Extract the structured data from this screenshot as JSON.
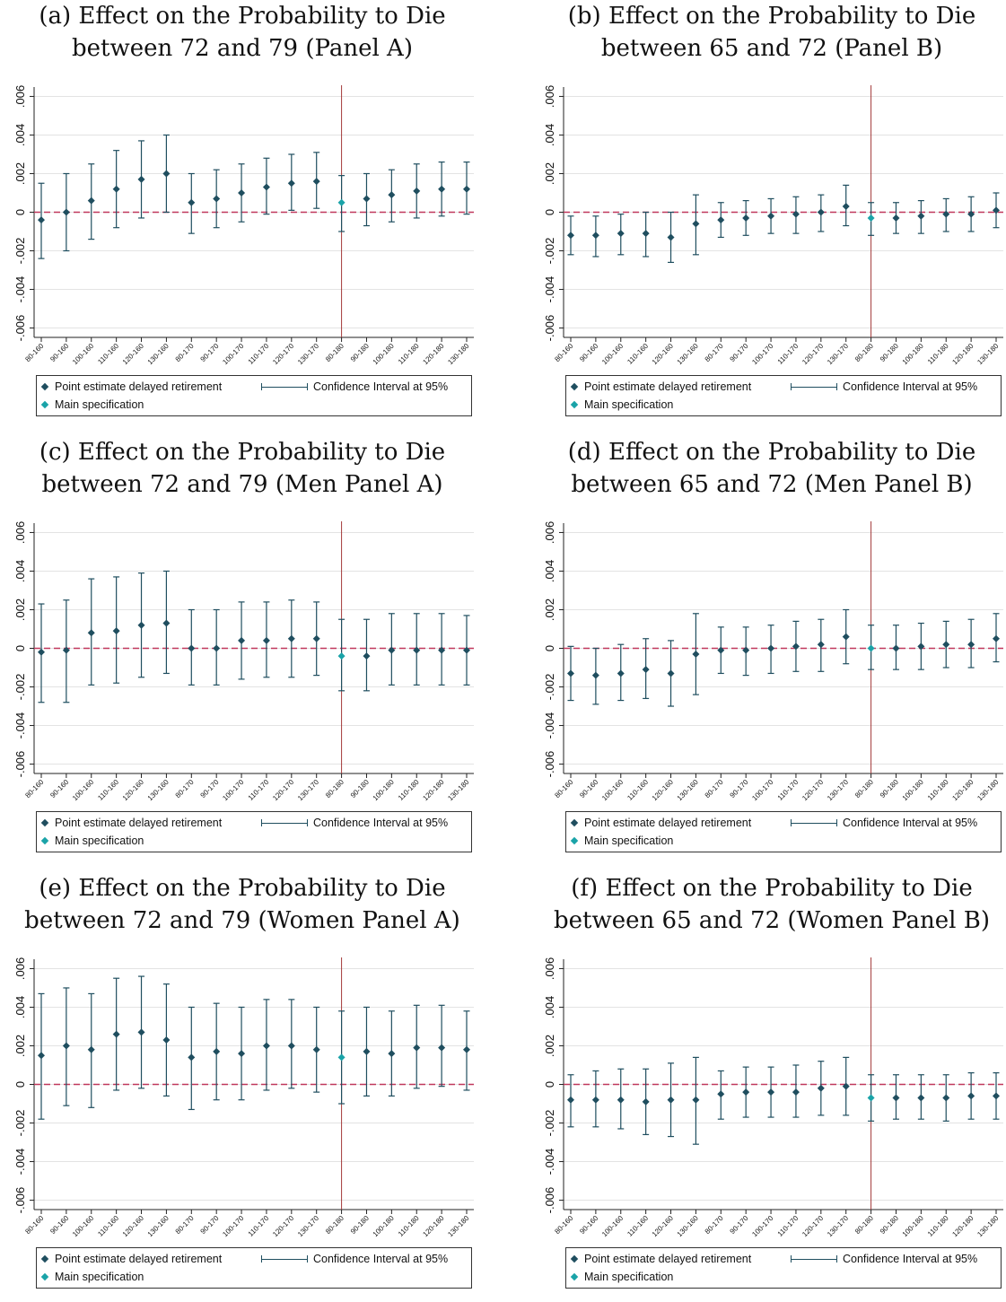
{
  "legend": {
    "point": "Point estimate delayed retirement",
    "ci": "Confidence Interval at 95%",
    "main": "Main specification"
  },
  "colors": {
    "point": "#1f4e5f",
    "main": "#1aa3a8",
    "ci": "#1f4e5f",
    "zero_line": "#c0385c",
    "vline": "#a33a3a",
    "grid": "#e3e3e3"
  },
  "panels": [
    {
      "caption": [
        "(a) Effect on the Probability to Die",
        "between 72 and 79 (Panel A)"
      ]
    },
    {
      "caption": [
        "(b) Effect on the Probability to Die",
        "between 65 and 72 (Panel B)"
      ]
    },
    {
      "caption": [
        "(c) Effect on the Probability to Die",
        "between 72 and 79 (Men Panel A)"
      ]
    },
    {
      "caption": [
        "(d) Effect on the Probability to Die",
        "between 65 and 72 (Men Panel B)"
      ]
    },
    {
      "caption": [
        "(e) Effect on the Probability to Die",
        "between 72 and 79 (Women Panel A)"
      ]
    },
    {
      "caption": [
        "(f) Effect on the Probability to Die",
        "between 65 and 72 (Women Panel B)"
      ]
    }
  ],
  "chart_data": [
    {
      "type": "scatter",
      "categories": [
        "80-160",
        "90-160",
        "100-160",
        "110-160",
        "120-160",
        "130-160",
        "80-170",
        "90-170",
        "100-170",
        "110-170",
        "120-170",
        "130-170",
        "80-180",
        "90-180",
        "100-180",
        "110-180",
        "120-180",
        "130-180"
      ],
      "yticks": [
        "-.006",
        "-.004",
        "-.002",
        "0",
        ".002",
        ".004",
        ".006"
      ],
      "ylim": [
        -0.0063,
        0.0063
      ],
      "main_index": 12,
      "point": [
        -0.0004,
        0.0,
        0.0006,
        0.0012,
        0.0017,
        0.002,
        0.0005,
        0.0007,
        0.001,
        0.0013,
        0.0015,
        0.0016,
        0.0005,
        0.0007,
        0.0009,
        0.0011,
        0.0012,
        0.0012
      ],
      "ci_low": [
        -0.0024,
        -0.002,
        -0.0014,
        -0.0008,
        -0.0003,
        0.0,
        -0.0011,
        -0.0008,
        -0.0005,
        -0.0001,
        0.0001,
        0.0002,
        -0.001,
        -0.0007,
        -0.0005,
        -0.0003,
        -0.0002,
        -0.0001
      ],
      "ci_high": [
        0.0015,
        0.002,
        0.0025,
        0.0032,
        0.0037,
        0.004,
        0.002,
        0.0022,
        0.0025,
        0.0028,
        0.003,
        0.0031,
        0.0019,
        0.002,
        0.0022,
        0.0025,
        0.0026,
        0.0026
      ]
    },
    {
      "type": "scatter",
      "categories": [
        "80-160",
        "90-160",
        "100-160",
        "110-160",
        "120-160",
        "130-160",
        "80-170",
        "90-170",
        "100-170",
        "110-170",
        "120-170",
        "130-170",
        "80-180",
        "90-180",
        "100-180",
        "110-180",
        "120-180",
        "130-180"
      ],
      "yticks": [
        "-.006",
        "-.004",
        "-.002",
        "0",
        ".002",
        ".004",
        ".006"
      ],
      "ylim": [
        -0.0063,
        0.0063
      ],
      "main_index": 12,
      "point": [
        -0.0012,
        -0.0012,
        -0.0011,
        -0.0011,
        -0.0013,
        -0.0006,
        -0.0004,
        -0.0003,
        -0.0002,
        -0.0001,
        0.0,
        0.0003,
        -0.0003,
        -0.0003,
        -0.0002,
        -0.0001,
        -0.0001,
        0.0001
      ],
      "ci_low": [
        -0.0022,
        -0.0023,
        -0.0022,
        -0.0023,
        -0.0026,
        -0.0022,
        -0.0013,
        -0.0012,
        -0.0011,
        -0.0011,
        -0.001,
        -0.0007,
        -0.0012,
        -0.0011,
        -0.0011,
        -0.001,
        -0.001,
        -0.0008
      ],
      "ci_high": [
        -0.0002,
        -0.0002,
        -0.0001,
        0.0,
        0.0,
        0.0009,
        0.0005,
        0.0006,
        0.0007,
        0.0008,
        0.0009,
        0.0014,
        0.0005,
        0.0005,
        0.0006,
        0.0007,
        0.0008,
        0.001
      ]
    },
    {
      "type": "scatter",
      "categories": [
        "80-160",
        "90-160",
        "100-160",
        "110-160",
        "120-160",
        "130-160",
        "80-170",
        "90-170",
        "100-170",
        "110-170",
        "120-170",
        "130-170",
        "80-180",
        "90-180",
        "100-180",
        "110-180",
        "120-180",
        "130-180"
      ],
      "yticks": [
        "-.006",
        "-.004",
        "-.002",
        "0",
        ".002",
        ".004",
        ".006"
      ],
      "ylim": [
        -0.0063,
        0.0063
      ],
      "main_index": 12,
      "point": [
        -0.0002,
        -0.0001,
        0.0008,
        0.0009,
        0.0012,
        0.0013,
        0.0,
        0.0,
        0.0004,
        0.0004,
        0.0005,
        0.0005,
        -0.0004,
        -0.0004,
        -0.0001,
        -0.0001,
        -0.0001,
        -0.0001
      ],
      "ci_low": [
        -0.0028,
        -0.0028,
        -0.0019,
        -0.0018,
        -0.0015,
        -0.0013,
        -0.0019,
        -0.0019,
        -0.0016,
        -0.0015,
        -0.0015,
        -0.0014,
        -0.0022,
        -0.0022,
        -0.0019,
        -0.0019,
        -0.0019,
        -0.0019
      ],
      "ci_high": [
        0.0023,
        0.0025,
        0.0036,
        0.0037,
        0.0039,
        0.004,
        0.002,
        0.002,
        0.0024,
        0.0024,
        0.0025,
        0.0024,
        0.0015,
        0.0015,
        0.0018,
        0.0018,
        0.0018,
        0.0017
      ]
    },
    {
      "type": "scatter",
      "categories": [
        "80-160",
        "90-160",
        "100-160",
        "110-160",
        "120-160",
        "130-160",
        "80-170",
        "90-170",
        "100-170",
        "110-170",
        "120-170",
        "130-170",
        "80-180",
        "90-180",
        "100-180",
        "110-180",
        "120-180",
        "130-180"
      ],
      "yticks": [
        "-.006",
        "-.004",
        "-.002",
        "0",
        ".002",
        ".004",
        ".006"
      ],
      "ylim": [
        -0.0063,
        0.0063
      ],
      "main_index": 12,
      "point": [
        -0.0013,
        -0.0014,
        -0.0013,
        -0.0011,
        -0.0013,
        -0.0003,
        -0.0001,
        -0.0001,
        0.0,
        0.0001,
        0.0002,
        0.0006,
        0.0,
        0.0,
        0.0001,
        0.0002,
        0.0002,
        0.0005
      ],
      "ci_low": [
        -0.0027,
        -0.0029,
        -0.0027,
        -0.0026,
        -0.003,
        -0.0024,
        -0.0013,
        -0.0014,
        -0.0013,
        -0.0012,
        -0.0012,
        -0.0008,
        -0.0011,
        -0.0011,
        -0.0011,
        -0.001,
        -0.001,
        -0.0007
      ],
      "ci_high": [
        0.0001,
        0.0,
        0.0002,
        0.0005,
        0.0004,
        0.0018,
        0.0011,
        0.0011,
        0.0012,
        0.0014,
        0.0015,
        0.002,
        0.0012,
        0.0012,
        0.0013,
        0.0014,
        0.0015,
        0.0018
      ]
    },
    {
      "type": "scatter",
      "categories": [
        "80-160",
        "90-160",
        "100-160",
        "110-160",
        "120-160",
        "130-160",
        "80-170",
        "90-170",
        "100-170",
        "110-170",
        "120-170",
        "130-170",
        "80-180",
        "90-180",
        "100-180",
        "110-180",
        "120-180",
        "130-180"
      ],
      "yticks": [
        "-.006",
        "-.004",
        "-.002",
        "0",
        ".002",
        ".004",
        ".006"
      ],
      "ylim": [
        -0.0063,
        0.0063
      ],
      "main_index": 12,
      "point": [
        0.0015,
        0.002,
        0.0018,
        0.0026,
        0.0027,
        0.0023,
        0.0014,
        0.0017,
        0.0016,
        0.002,
        0.002,
        0.0018,
        0.0014,
        0.0017,
        0.0016,
        0.0019,
        0.0019,
        0.0018
      ],
      "ci_low": [
        -0.0018,
        -0.0011,
        -0.0012,
        -0.0003,
        -0.0002,
        -0.0006,
        -0.0013,
        -0.0008,
        -0.0008,
        -0.0003,
        -0.0002,
        -0.0004,
        -0.001,
        -0.0006,
        -0.0006,
        -0.0002,
        -0.0001,
        -0.0003
      ],
      "ci_high": [
        0.0047,
        0.005,
        0.0047,
        0.0055,
        0.0056,
        0.0052,
        0.004,
        0.0042,
        0.004,
        0.0044,
        0.0044,
        0.004,
        0.0038,
        0.004,
        0.0038,
        0.0041,
        0.0041,
        0.0038
      ]
    },
    {
      "type": "scatter",
      "categories": [
        "80-160",
        "90-160",
        "100-160",
        "110-160",
        "120-160",
        "130-160",
        "80-170",
        "90-170",
        "100-170",
        "110-170",
        "120-170",
        "130-170",
        "80-180",
        "90-180",
        "100-180",
        "110-180",
        "120-180",
        "130-180"
      ],
      "yticks": [
        "-.006",
        "-.004",
        "-.002",
        "0",
        ".002",
        ".004",
        ".006"
      ],
      "ylim": [
        -0.0063,
        0.0063
      ],
      "main_index": 12,
      "point": [
        -0.0008,
        -0.0008,
        -0.0008,
        -0.0009,
        -0.0008,
        -0.0008,
        -0.0005,
        -0.0004,
        -0.0004,
        -0.0004,
        -0.0002,
        -0.0001,
        -0.0007,
        -0.0007,
        -0.0007,
        -0.0007,
        -0.0006,
        -0.0006
      ],
      "ci_low": [
        -0.0022,
        -0.0022,
        -0.0023,
        -0.0026,
        -0.0027,
        -0.0031,
        -0.0018,
        -0.0017,
        -0.0017,
        -0.0017,
        -0.0016,
        -0.0016,
        -0.0019,
        -0.0018,
        -0.0018,
        -0.0019,
        -0.0018,
        -0.0018
      ],
      "ci_high": [
        0.0005,
        0.0007,
        0.0008,
        0.0008,
        0.0011,
        0.0014,
        0.0007,
        0.0009,
        0.0009,
        0.001,
        0.0012,
        0.0014,
        0.0005,
        0.0005,
        0.0005,
        0.0005,
        0.0006,
        0.0006
      ]
    }
  ]
}
